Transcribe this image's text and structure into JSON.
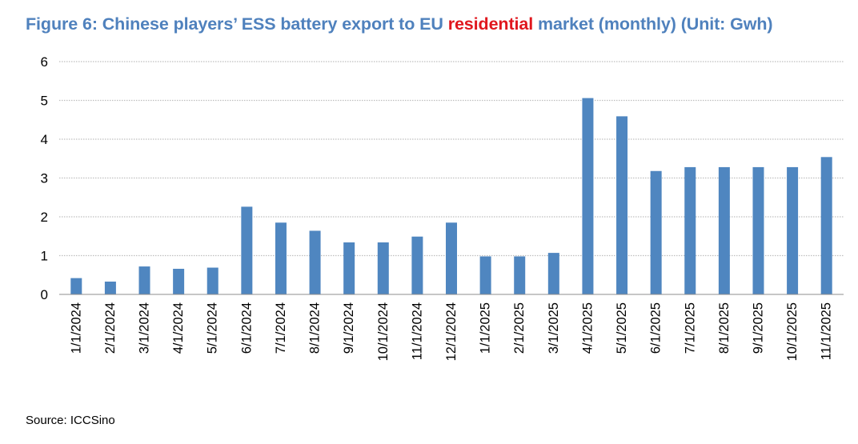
{
  "title": {
    "prefix": "Figure 6: Chinese players’ ESS battery export to EU ",
    "highlight": "residential",
    "suffix": " market (monthly) (Unit: Gwh)"
  },
  "source": "Source: ICCSino",
  "colors": {
    "title": "#4f81bd",
    "highlight": "#e0171e",
    "bar": "#4f86c0",
    "grid": "#bfbfbf"
  },
  "chart_data": {
    "type": "bar",
    "title": "Figure 6: Chinese players’ ESS battery export to EU residential market (monthly) (Unit: Gwh)",
    "xlabel": "",
    "ylabel": "",
    "ylim": [
      0,
      6
    ],
    "yticks": [
      "0",
      "1",
      "2",
      "3",
      "4",
      "5",
      "6"
    ],
    "grid": true,
    "categories": [
      "1/1/2024",
      "2/1/2024",
      "3/1/2024",
      "4/1/2024",
      "5/1/2024",
      "6/1/2024",
      "7/1/2024",
      "8/1/2024",
      "9/1/2024",
      "10/1/2024",
      "11/1/2024",
      "12/1/2024",
      "1/1/2025",
      "2/1/2025",
      "3/1/2025",
      "4/1/2025",
      "5/1/2025",
      "6/1/2025",
      "7/1/2025",
      "8/1/2025",
      "9/1/2025",
      "10/1/2025",
      "11/1/2025"
    ],
    "values": [
      0.42,
      0.33,
      0.72,
      0.66,
      0.69,
      2.26,
      1.85,
      1.64,
      1.34,
      1.34,
      1.49,
      1.85,
      0.98,
      0.98,
      1.07,
      5.06,
      4.59,
      3.18,
      3.28,
      3.28,
      3.28,
      3.28,
      3.54
    ]
  }
}
